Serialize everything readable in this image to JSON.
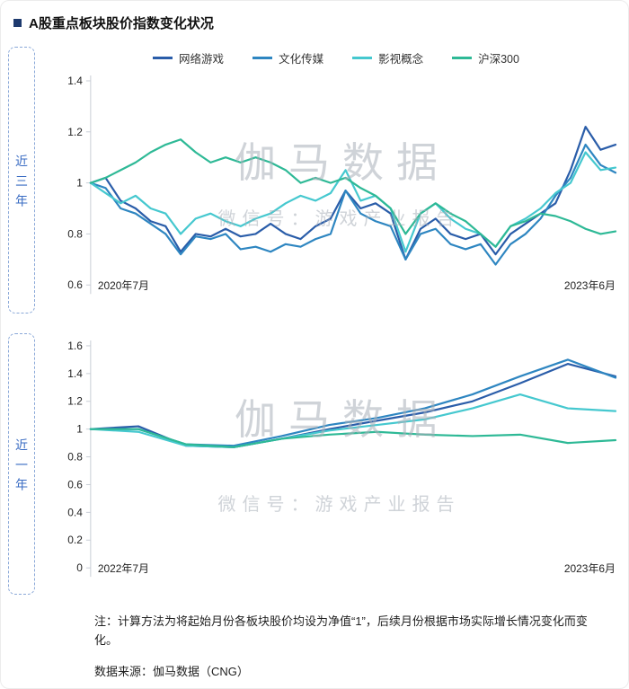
{
  "page": {
    "title": "A股重点板块股价指数变化状况",
    "note": "注：计算方法为将起始月份各板块股价均设为净值“1”，后续月份根据市场实际增长情况变化而变化。",
    "source": "数据来源：伽马数据（CNG）"
  },
  "watermark": {
    "line1": "伽马数据",
    "line2": "微信号：游戏产业报告"
  },
  "colors": {
    "title_bullet": "#1e3a6e",
    "panel_tag_border": "#8aa8d8",
    "panel_tag_text": "#3a6cc3",
    "axis": "#c9ced6"
  },
  "chart_data": [
    {
      "type": "line",
      "panel_label": "近三年",
      "x_start_label": "2020年7月",
      "x_end_label": "2023年6月",
      "ylim": [
        0.6,
        1.4
      ],
      "yticks": [
        1.4,
        1.2,
        1,
        0.8,
        0.6
      ],
      "grid": false,
      "legend_position": "top",
      "x_frequency": "monthly",
      "series": [
        {
          "name": "网络游戏",
          "color": "#2a5da9",
          "values": [
            1.0,
            1.02,
            0.93,
            0.9,
            0.85,
            0.83,
            0.73,
            0.8,
            0.79,
            0.82,
            0.79,
            0.8,
            0.84,
            0.8,
            0.78,
            0.83,
            0.86,
            0.97,
            0.9,
            0.92,
            0.88,
            0.7,
            0.82,
            0.86,
            0.8,
            0.78,
            0.8,
            0.72,
            0.8,
            0.84,
            0.88,
            0.92,
            1.05,
            1.22,
            1.13,
            1.15
          ]
        },
        {
          "name": "文化传媒",
          "color": "#2e86c1",
          "values": [
            1.0,
            0.98,
            0.9,
            0.88,
            0.84,
            0.8,
            0.72,
            0.79,
            0.78,
            0.8,
            0.74,
            0.75,
            0.73,
            0.76,
            0.75,
            0.78,
            0.8,
            0.97,
            0.88,
            0.85,
            0.83,
            0.7,
            0.8,
            0.82,
            0.76,
            0.74,
            0.76,
            0.68,
            0.76,
            0.8,
            0.86,
            0.95,
            1.02,
            1.15,
            1.07,
            1.04
          ]
        },
        {
          "name": "影视概念",
          "color": "#45c8cf",
          "values": [
            1.0,
            0.96,
            0.92,
            0.95,
            0.9,
            0.88,
            0.8,
            0.86,
            0.88,
            0.85,
            0.83,
            0.86,
            0.88,
            0.92,
            0.95,
            0.93,
            0.96,
            1.05,
            0.93,
            0.95,
            0.9,
            0.73,
            0.88,
            0.92,
            0.86,
            0.82,
            0.8,
            0.75,
            0.83,
            0.86,
            0.9,
            0.96,
            1.0,
            1.12,
            1.05,
            1.06
          ]
        },
        {
          "name": "沪深300",
          "color": "#2eb996",
          "values": [
            1.0,
            1.02,
            1.05,
            1.08,
            1.12,
            1.15,
            1.17,
            1.12,
            1.08,
            1.1,
            1.08,
            1.1,
            1.08,
            1.05,
            1.0,
            1.02,
            1.0,
            1.02,
            0.98,
            0.95,
            0.9,
            0.8,
            0.88,
            0.92,
            0.88,
            0.85,
            0.8,
            0.75,
            0.83,
            0.85,
            0.88,
            0.87,
            0.85,
            0.82,
            0.8,
            0.81
          ]
        }
      ]
    },
    {
      "type": "line",
      "panel_label": "近一年",
      "x_start_label": "2022年7月",
      "x_end_label": "2023年6月",
      "ylim": [
        0,
        1.6
      ],
      "yticks": [
        1.6,
        1.4,
        1.2,
        1,
        0.8,
        0.6,
        0.4,
        0.2,
        0
      ],
      "grid": false,
      "legend_position": "none",
      "x_frequency": "monthly",
      "series": [
        {
          "name": "网络游戏",
          "color": "#2a5da9",
          "values": [
            1.0,
            1.02,
            0.88,
            0.87,
            0.93,
            1.0,
            1.06,
            1.12,
            1.2,
            1.33,
            1.47,
            1.38
          ]
        },
        {
          "name": "文化传媒",
          "color": "#2e86c1",
          "values": [
            1.0,
            1.0,
            0.89,
            0.88,
            0.95,
            1.03,
            1.08,
            1.15,
            1.25,
            1.38,
            1.5,
            1.37
          ]
        },
        {
          "name": "影视概念",
          "color": "#45c8cf",
          "values": [
            1.0,
            0.98,
            0.88,
            0.87,
            0.93,
            0.99,
            1.03,
            1.07,
            1.15,
            1.25,
            1.15,
            1.13
          ]
        },
        {
          "name": "沪深300",
          "color": "#2eb996",
          "values": [
            1.0,
            1.0,
            0.89,
            0.87,
            0.93,
            0.96,
            0.98,
            0.96,
            0.95,
            0.96,
            0.9,
            0.92
          ]
        }
      ]
    }
  ]
}
